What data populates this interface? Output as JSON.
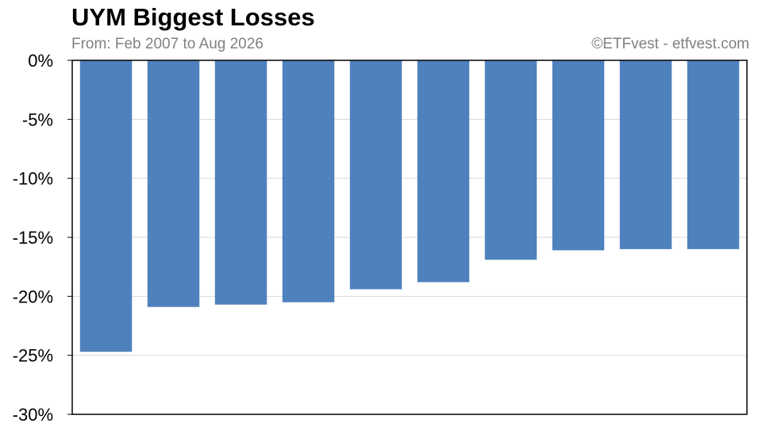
{
  "header": {
    "title": "UYM Biggest Losses",
    "subtitle": "From: Feb 2007 to Aug 2026",
    "credit": "©ETFvest - etfvest.com"
  },
  "chart_data": {
    "type": "bar",
    "title": "UYM Biggest Losses",
    "subtitle": "From: Feb 2007 to Aug 2026",
    "xlabel": "",
    "ylabel": "",
    "ylim": [
      -30,
      0
    ],
    "yticks": [
      0,
      -5,
      -10,
      -15,
      -20,
      -25,
      -30
    ],
    "ytick_labels": [
      "0%",
      "-5%",
      "-10%",
      "-15%",
      "-20%",
      "-25%",
      "-30%"
    ],
    "values": [
      -24.7,
      -20.9,
      -20.7,
      -20.5,
      -19.4,
      -18.8,
      -16.9,
      -16.1,
      -16.0,
      -16.0
    ],
    "bar_color": "#4f81bd",
    "grid": true,
    "legend": "none"
  }
}
